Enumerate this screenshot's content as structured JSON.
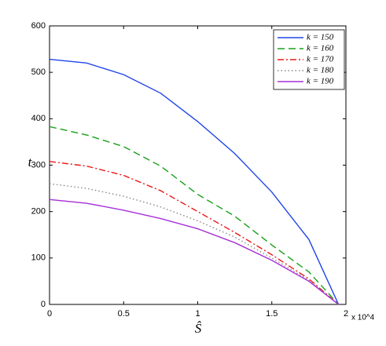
{
  "chart_data": {
    "type": "line",
    "xlabel": "Ŝ",
    "ylabel": "t",
    "x_exponent": "x 10^4",
    "x": [
      0,
      0.25,
      0.5,
      0.75,
      1,
      1.25,
      1.5,
      1.75,
      1.95
    ],
    "series": [
      {
        "name": "k = 150",
        "color": "#2046e8",
        "dash": "",
        "values": [
          528,
          520,
          495,
          455,
          394,
          325,
          242,
          140,
          0
        ]
      },
      {
        "name": "k = 160",
        "color": "#18a018",
        "dash": "9 5",
        "values": [
          383,
          365,
          340,
          298,
          237,
          190,
          128,
          70,
          0
        ]
      },
      {
        "name": "k = 170",
        "color": "#e81818",
        "dash": "8 3 2 3",
        "values": [
          308,
          298,
          278,
          245,
          200,
          155,
          107,
          55,
          0
        ]
      },
      {
        "name": "k = 180",
        "color": "#888888",
        "dash": "1.5 3",
        "values": [
          260,
          250,
          233,
          210,
          180,
          145,
          100,
          52,
          0
        ]
      },
      {
        "name": "k = 190",
        "color": "#a530d8",
        "dash": "",
        "values": [
          226,
          218,
          203,
          185,
          163,
          133,
          95,
          50,
          0
        ]
      }
    ],
    "xlim": [
      0,
      2
    ],
    "xticks": [
      0,
      0.5,
      1,
      1.5,
      2
    ],
    "ylim": [
      0,
      600
    ],
    "yticks": [
      0,
      100,
      200,
      300,
      400,
      500,
      600
    ],
    "legend": "top-right"
  }
}
